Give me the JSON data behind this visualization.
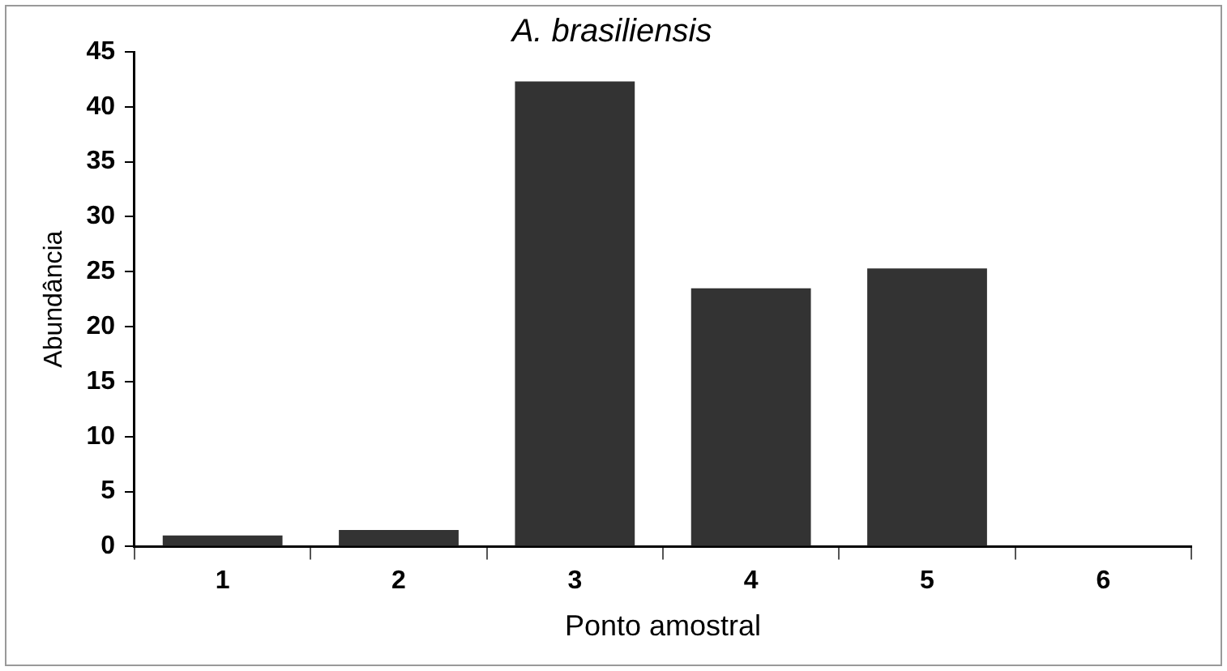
{
  "chart_data": {
    "type": "bar",
    "title": "A. brasiliensis",
    "xlabel": "Ponto amostral",
    "ylabel": "Abundância",
    "categories": [
      "1",
      "2",
      "3",
      "4",
      "5",
      "6"
    ],
    "values": [
      1,
      1.5,
      42.3,
      23.5,
      25.3,
      0
    ],
    "color": "#333333",
    "ylim": [
      0,
      45
    ],
    "yticks": [
      0,
      5,
      10,
      15,
      20,
      25,
      30,
      35,
      40,
      45
    ],
    "grid": false,
    "legend": false
  }
}
